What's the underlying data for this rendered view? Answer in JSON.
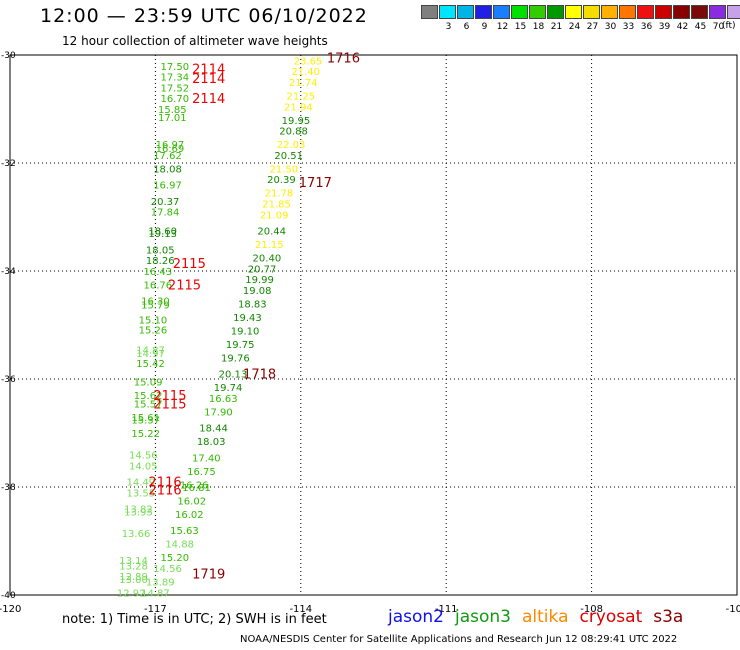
{
  "header": {
    "title": "12:00 — 23:59 UTC 06/10/2022",
    "subtitle": "12 hour collection of altimeter wave heights"
  },
  "colorbar": {
    "unit": "(ft)",
    "colors": [
      "#7f7f7f",
      "#00e5ff",
      "#00b4e8",
      "#1f1fe6",
      "#1a7fff",
      "#00e000",
      "#33cc00",
      "#009a00",
      "#ffff00",
      "#f5dd00",
      "#ffb000",
      "#ff7700",
      "#ee1111",
      "#cc0000",
      "#880000",
      "#7a0a0a",
      "#8a2be2",
      "#c8a2e8",
      "#ff88d8",
      "#000000"
    ],
    "labels": [
      "",
      "3",
      "6",
      "9",
      "12",
      "15",
      "18",
      "21",
      "24",
      "27",
      "30",
      "33",
      "36",
      "39",
      "42",
      "45",
      "70"
    ]
  },
  "footer": {
    "note": "note:  1) Time is in UTC;  2) SWH is in feet",
    "satellites": [
      {
        "name": "jason2",
        "color": "#1010ee"
      },
      {
        "name": "jason3",
        "color": "#119911"
      },
      {
        "name": "altika",
        "color": "#ff8800"
      },
      {
        "name": "cryosat",
        "color": "#dd0000"
      },
      {
        "name": "s3a",
        "color": "#880000"
      }
    ],
    "credit": "NOAA/NESDIS Center for Satellite Applications and Research    Jun 12 08:29:41 UTC 2022"
  },
  "chart_data": {
    "type": "scatter",
    "xlim": [
      -120,
      -105
    ],
    "ylim": [
      -40,
      -30
    ],
    "xticks": [
      -120,
      -117,
      -114,
      -111,
      -108,
      -105
    ],
    "yticks": [
      -30,
      -32,
      -34,
      -36,
      -38,
      -40
    ],
    "xtick_labels": [
      "-120",
      "-117",
      "-114",
      "-111",
      "-108",
      "-105"
    ],
    "ytick_labels": [
      "-30",
      "-32",
      "-34",
      "-36",
      "-38",
      "-40"
    ],
    "grid": "dashed at ticks",
    "swh_points": [
      {
        "lon": -116.6,
        "lat": -30.2,
        "swh": "17.50"
      },
      {
        "lon": -116.6,
        "lat": -30.4,
        "swh": "17.34"
      },
      {
        "lon": -116.6,
        "lat": -30.6,
        "swh": "17.52"
      },
      {
        "lon": -116.6,
        "lat": -30.8,
        "swh": "16.70"
      },
      {
        "lon": -116.65,
        "lat": -31.0,
        "swh": "15.85"
      },
      {
        "lon": -116.65,
        "lat": -31.15,
        "swh": "17.01"
      },
      {
        "lon": -116.7,
        "lat": -31.65,
        "swh": "16.97"
      },
      {
        "lon": -116.7,
        "lat": -31.72,
        "swh": "16.69"
      },
      {
        "lon": -116.75,
        "lat": -31.85,
        "swh": "17.62"
      },
      {
        "lon": -116.75,
        "lat": -32.1,
        "swh": "18.08"
      },
      {
        "lon": -116.75,
        "lat": -32.4,
        "swh": "16.97"
      },
      {
        "lon": -116.8,
        "lat": -32.7,
        "swh": "20.37"
      },
      {
        "lon": -116.8,
        "lat": -32.9,
        "swh": "17.84"
      },
      {
        "lon": -116.85,
        "lat": -33.25,
        "swh": "18.60"
      },
      {
        "lon": -116.85,
        "lat": -33.3,
        "swh": "19.13"
      },
      {
        "lon": -116.9,
        "lat": -33.6,
        "swh": "18.05"
      },
      {
        "lon": -116.9,
        "lat": -33.8,
        "swh": "18.26"
      },
      {
        "lon": -116.95,
        "lat": -34.0,
        "swh": "16.43"
      },
      {
        "lon": -116.95,
        "lat": -34.25,
        "swh": "16.76"
      },
      {
        "lon": -117.0,
        "lat": -34.55,
        "swh": "16.30"
      },
      {
        "lon": -117.0,
        "lat": -34.62,
        "swh": "15.79"
      },
      {
        "lon": -117.05,
        "lat": -34.9,
        "swh": "15.10"
      },
      {
        "lon": -117.05,
        "lat": -35.08,
        "swh": "15.26"
      },
      {
        "lon": -117.1,
        "lat": -35.45,
        "swh": "14.87"
      },
      {
        "lon": -117.1,
        "lat": -35.52,
        "swh": "14.97"
      },
      {
        "lon": -117.1,
        "lat": -35.7,
        "swh": "15.42"
      },
      {
        "lon": -117.15,
        "lat": -36.05,
        "swh": "15.09"
      },
      {
        "lon": -117.15,
        "lat": -36.3,
        "swh": "15.62"
      },
      {
        "lon": -117.15,
        "lat": -36.45,
        "swh": "15.57"
      },
      {
        "lon": -117.2,
        "lat": -36.7,
        "swh": "15.61"
      },
      {
        "lon": -117.2,
        "lat": -36.75,
        "swh": "15.37"
      },
      {
        "lon": -117.2,
        "lat": -37.0,
        "swh": "15.22"
      },
      {
        "lon": -117.25,
        "lat": -37.4,
        "swh": "14.56"
      },
      {
        "lon": -117.25,
        "lat": -37.6,
        "swh": "14.05"
      },
      {
        "lon": -117.3,
        "lat": -37.9,
        "swh": "14.49"
      },
      {
        "lon": -117.3,
        "lat": -38.1,
        "swh": "13.55"
      },
      {
        "lon": -117.35,
        "lat": -38.4,
        "swh": "13.82"
      },
      {
        "lon": -117.35,
        "lat": -38.45,
        "swh": "13.93"
      },
      {
        "lon": -117.4,
        "lat": -38.85,
        "swh": "13.66"
      },
      {
        "lon": -117.45,
        "lat": -39.35,
        "swh": "13.14"
      },
      {
        "lon": -117.45,
        "lat": -39.45,
        "swh": "13.28"
      },
      {
        "lon": -117.45,
        "lat": -39.65,
        "swh": "12.89"
      },
      {
        "lon": -117.45,
        "lat": -39.7,
        "swh": "13.00"
      },
      {
        "lon": -117.5,
        "lat": -39.95,
        "swh": "12.92"
      },
      {
        "lon": -117.0,
        "lat": -39.95,
        "swh": "14.87"
      },
      {
        "lon": -116.9,
        "lat": -39.75,
        "swh": "13.89"
      },
      {
        "lon": -116.75,
        "lat": -39.5,
        "swh": "14.56"
      },
      {
        "lon": -116.6,
        "lat": -39.3,
        "swh": "15.20"
      },
      {
        "lon": -116.5,
        "lat": -39.05,
        "swh": "14.88"
      },
      {
        "lon": -116.4,
        "lat": -38.8,
        "swh": "15.63"
      },
      {
        "lon": -116.3,
        "lat": -38.5,
        "swh": "16.02"
      },
      {
        "lon": -116.25,
        "lat": -38.25,
        "swh": "16.02"
      },
      {
        "lon": -116.2,
        "lat": -37.95,
        "swh": "16.26"
      },
      {
        "lon": -116.15,
        "lat": -38.0,
        "swh": "16.81"
      },
      {
        "lon": -116.05,
        "lat": -37.7,
        "swh": "16.75"
      },
      {
        "lon": -115.95,
        "lat": -37.45,
        "swh": "17.40"
      },
      {
        "lon": -115.85,
        "lat": -37.15,
        "swh": "18.03"
      },
      {
        "lon": -115.8,
        "lat": -36.9,
        "swh": "18.44"
      },
      {
        "lon": -115.7,
        "lat": -36.6,
        "swh": "17.90"
      },
      {
        "lon": -115.6,
        "lat": -36.35,
        "swh": "16.63"
      },
      {
        "lon": -115.5,
        "lat": -36.15,
        "swh": "19.74"
      },
      {
        "lon": -115.4,
        "lat": -35.9,
        "swh": "20.13"
      },
      {
        "lon": -115.35,
        "lat": -35.6,
        "swh": "19.76"
      },
      {
        "lon": -115.25,
        "lat": -35.35,
        "swh": "19.75"
      },
      {
        "lon": -115.15,
        "lat": -35.1,
        "swh": "19.10"
      },
      {
        "lon": -115.1,
        "lat": -34.85,
        "swh": "19.43"
      },
      {
        "lon": -115.0,
        "lat": -34.6,
        "swh": "18.83"
      },
      {
        "lon": -114.9,
        "lat": -34.35,
        "swh": "19.08"
      },
      {
        "lon": -114.85,
        "lat": -34.15,
        "swh": "19.99"
      },
      {
        "lon": -114.8,
        "lat": -33.95,
        "swh": "20.77"
      },
      {
        "lon": -114.7,
        "lat": -33.75,
        "swh": "20.40"
      },
      {
        "lon": -114.65,
        "lat": -33.5,
        "swh": "21.15"
      },
      {
        "lon": -114.6,
        "lat": -33.25,
        "swh": "20.44"
      },
      {
        "lon": -114.55,
        "lat": -32.95,
        "swh": "21.09"
      },
      {
        "lon": -114.5,
        "lat": -32.75,
        "swh": "21.85"
      },
      {
        "lon": -114.45,
        "lat": -32.55,
        "swh": "21.78"
      },
      {
        "lon": -114.4,
        "lat": -32.3,
        "swh": "20.39"
      },
      {
        "lon": -114.35,
        "lat": -32.1,
        "swh": "21.50"
      },
      {
        "lon": -114.25,
        "lat": -31.85,
        "swh": "20.51"
      },
      {
        "lon": -114.2,
        "lat": -31.65,
        "swh": "22.03"
      },
      {
        "lon": -114.15,
        "lat": -31.4,
        "swh": "20.88"
      },
      {
        "lon": -114.1,
        "lat": -31.2,
        "swh": "19.95"
      },
      {
        "lon": -114.05,
        "lat": -30.95,
        "swh": "21.94"
      },
      {
        "lon": -114.0,
        "lat": -30.75,
        "swh": "21.25"
      },
      {
        "lon": -113.95,
        "lat": -30.5,
        "swh": "21.74"
      },
      {
        "lon": -113.9,
        "lat": -30.3,
        "swh": "21.40"
      },
      {
        "lon": -113.85,
        "lat": -30.1,
        "swh": "23.65"
      }
    ],
    "pass_labels": [
      {
        "lon": -115.9,
        "lat": -30.25,
        "text": "2114"
      },
      {
        "lon": -115.9,
        "lat": -30.43,
        "text": "2114"
      },
      {
        "lon": -115.9,
        "lat": -30.8,
        "text": "2114"
      },
      {
        "lon": -116.3,
        "lat": -33.85,
        "text": "2115"
      },
      {
        "lon": -116.4,
        "lat": -34.25,
        "text": "2115"
      },
      {
        "lon": -116.7,
        "lat": -36.3,
        "text": "2115"
      },
      {
        "lon": -116.7,
        "lat": -36.45,
        "text": "2115"
      },
      {
        "lon": -116.8,
        "lat": -37.9,
        "text": "2116"
      },
      {
        "lon": -116.8,
        "lat": -38.05,
        "text": "2116"
      },
      {
        "lon": -113.12,
        "lat": -30.05,
        "text": "1716"
      },
      {
        "lon": -113.7,
        "lat": -32.35,
        "text": "1717"
      },
      {
        "lon": -114.85,
        "lat": -35.9,
        "text": "1718"
      },
      {
        "lon": -115.9,
        "lat": -39.6,
        "text": "1719"
      }
    ]
  }
}
